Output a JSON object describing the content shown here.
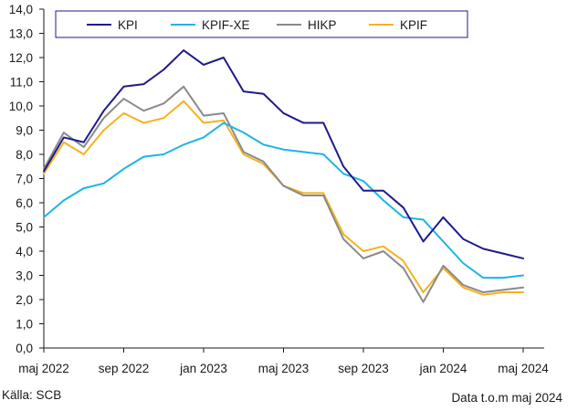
{
  "chart_data": {
    "type": "line",
    "title": "",
    "xlabel": "",
    "ylabel": "",
    "ylim": [
      0,
      14
    ],
    "ytick_step": 1,
    "grid": false,
    "legend": "top",
    "categories": [
      "maj 2022",
      "jun 2022",
      "jul 2022",
      "aug 2022",
      "sep 2022",
      "okt 2022",
      "nov 2022",
      "dec 2022",
      "jan 2023",
      "feb 2023",
      "mar 2023",
      "apr 2023",
      "maj 2023",
      "jun 2023",
      "jul 2023",
      "aug 2023",
      "sep 2023",
      "okt 2023",
      "nov 2023",
      "dec 2023",
      "jan 2024",
      "feb 2024",
      "mar 2024",
      "apr 2024",
      "maj 2024"
    ],
    "x_tick_labels": [
      {
        "index": 0,
        "label": "maj 2022"
      },
      {
        "index": 4,
        "label": "sep 2022"
      },
      {
        "index": 8,
        "label": "jan 2023"
      },
      {
        "index": 12,
        "label": "maj 2023"
      },
      {
        "index": 16,
        "label": "sep 2023"
      },
      {
        "index": 20,
        "label": "jan 2024"
      },
      {
        "index": 24,
        "label": "maj 2024"
      }
    ],
    "y_tick_labels": [
      "0,0",
      "1,0",
      "2,0",
      "3,0",
      "4,0",
      "5,0",
      "6,0",
      "7,0",
      "8,0",
      "9,0",
      "10,0",
      "11,0",
      "12,0",
      "13,0",
      "14,0"
    ],
    "series": [
      {
        "name": "KPI",
        "color": "#1f1a8c",
        "values": [
          7.3,
          8.7,
          8.5,
          9.8,
          10.8,
          10.9,
          11.5,
          12.3,
          11.7,
          12.0,
          10.6,
          10.5,
          9.7,
          9.3,
          9.3,
          7.5,
          6.5,
          6.5,
          5.8,
          4.4,
          5.4,
          4.5,
          4.1,
          3.9,
          3.7
        ]
      },
      {
        "name": "KPIF-XE",
        "color": "#1fb4e6",
        "values": [
          5.4,
          6.1,
          6.6,
          6.8,
          7.4,
          7.9,
          8.0,
          8.4,
          8.7,
          9.3,
          8.9,
          8.4,
          8.2,
          8.1,
          8.0,
          7.2,
          6.9,
          6.1,
          5.4,
          5.3,
          4.4,
          3.5,
          2.9,
          2.9,
          3.0
        ]
      },
      {
        "name": "HIKP",
        "color": "#8a8a8a",
        "values": [
          7.4,
          8.9,
          8.3,
          9.5,
          10.3,
          9.8,
          10.1,
          10.8,
          9.6,
          9.7,
          8.1,
          7.7,
          6.7,
          6.3,
          6.3,
          4.5,
          3.7,
          4.0,
          3.3,
          1.9,
          3.4,
          2.6,
          2.3,
          2.4,
          2.5
        ]
      },
      {
        "name": "KPIF",
        "color": "#f5b21e",
        "values": [
          7.2,
          8.5,
          8.0,
          9.0,
          9.7,
          9.3,
          9.5,
          10.2,
          9.3,
          9.4,
          8.0,
          7.6,
          6.7,
          6.4,
          6.4,
          4.7,
          4.0,
          4.2,
          3.6,
          2.3,
          3.3,
          2.5,
          2.2,
          2.3,
          2.3
        ]
      }
    ]
  },
  "footer": {
    "source": "Källa: SCB",
    "data_note": "Data t.o.m maj 2024"
  }
}
